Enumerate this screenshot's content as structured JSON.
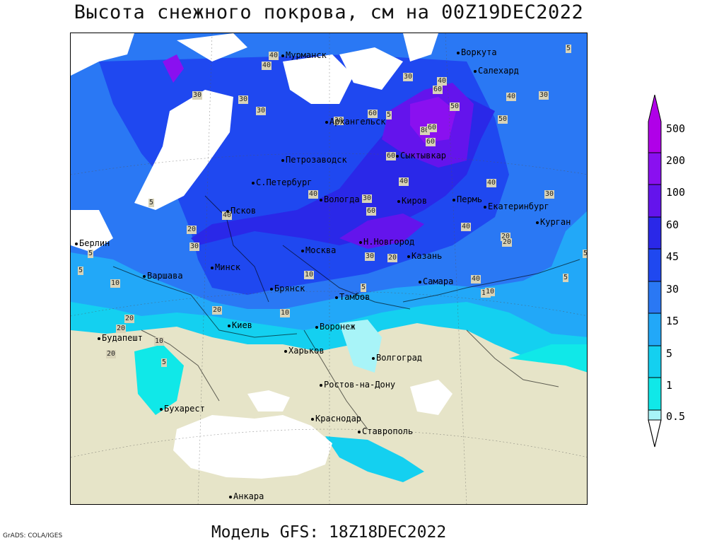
{
  "title": "Высота снежного покрова, см на 00Z19DEC2022",
  "subtitle": "Модель GFS: 18Z18DEC2022",
  "credit": "GrADS: COLA/IGES",
  "legend": {
    "labels": [
      "500",
      "200",
      "100",
      "60",
      "45",
      "30",
      "15",
      "5",
      "1",
      "0.5"
    ],
    "colors": [
      "#b000e8",
      "#8a10f0",
      "#6414ec",
      "#2a28e8",
      "#1f48f0",
      "#2a78f4",
      "#22a8f8",
      "#14d0f0",
      "#10e8e8",
      "#a8f4f8"
    ]
  },
  "cities": [
    {
      "name": "Мурманск"
    },
    {
      "name": "Воркута"
    },
    {
      "name": "Салехард"
    },
    {
      "name": "Архангельск"
    },
    {
      "name": "Сыктывкар"
    },
    {
      "name": "Петрозаводск"
    },
    {
      "name": "С.Петербург"
    },
    {
      "name": "Вологда"
    },
    {
      "name": "Киров"
    },
    {
      "name": "Пермь"
    },
    {
      "name": "Екатеринбург"
    },
    {
      "name": "Курган"
    },
    {
      "name": "Псков"
    },
    {
      "name": "Берлин"
    },
    {
      "name": "Москва"
    },
    {
      "name": "Н.Новгород"
    },
    {
      "name": "Казань"
    },
    {
      "name": "Минск"
    },
    {
      "name": "Варшава"
    },
    {
      "name": "Брянск"
    },
    {
      "name": "Тамбов"
    },
    {
      "name": "Самара"
    },
    {
      "name": "Киев"
    },
    {
      "name": "Воронеж"
    },
    {
      "name": "Будапешт"
    },
    {
      "name": "Харьков"
    },
    {
      "name": "Волгоград"
    },
    {
      "name": "Ростов-на-Дону"
    },
    {
      "name": "Бухарест"
    },
    {
      "name": "Краснодар"
    },
    {
      "name": "Ставрополь"
    },
    {
      "name": "Анкара"
    }
  ],
  "contour_labels": [
    "40",
    "40",
    "30",
    "30",
    "60",
    "30",
    "40",
    "60",
    "80",
    "40",
    "30",
    "30",
    "60",
    "30",
    "50",
    "40",
    "50",
    "60",
    "10",
    "40",
    "40",
    "40",
    "60",
    "60",
    "30",
    "40",
    "20",
    "30",
    "20",
    "20",
    "10",
    "10",
    "10",
    "30",
    "20",
    "30",
    "20",
    "40",
    "10",
    "20",
    "20",
    "10",
    "5",
    "5",
    "5",
    "20",
    "5",
    "5",
    "5",
    "5",
    "5",
    "5"
  ]
}
